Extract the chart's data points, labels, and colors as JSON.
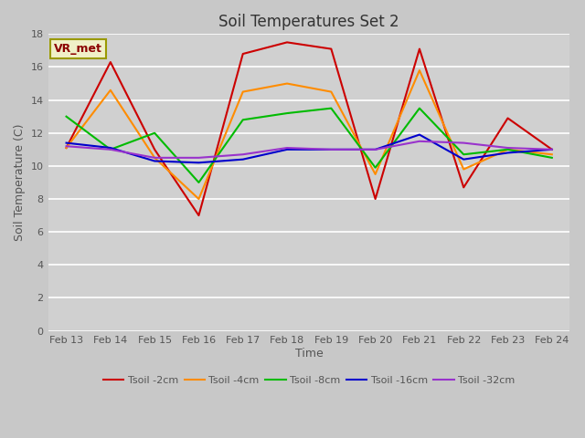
{
  "title": "Soil Temperatures Set 2",
  "xlabel": "Time",
  "ylabel": "Soil Temperature (C)",
  "annotation": "VR_met",
  "ylim": [
    0,
    18
  ],
  "yticks": [
    0,
    2,
    4,
    6,
    8,
    10,
    12,
    14,
    16,
    18
  ],
  "x_labels": [
    "Feb 13",
    "Feb 14",
    "Feb 15",
    "Feb 16",
    "Feb 17",
    "Feb 18",
    "Feb 19",
    "Feb 20",
    "Feb 21",
    "Feb 22",
    "Feb 23",
    "Feb 24"
  ],
  "n_points": 12,
  "series": {
    "Tsoil -2cm": {
      "color": "#cc0000",
      "data": [
        11.1,
        16.3,
        11.0,
        7.0,
        16.8,
        17.5,
        17.1,
        8.0,
        17.1,
        8.7,
        12.9,
        11.0
      ]
    },
    "Tsoil -4cm": {
      "color": "#ff8c00",
      "data": [
        11.1,
        14.6,
        10.5,
        8.0,
        14.5,
        15.0,
        14.5,
        9.5,
        15.8,
        9.8,
        11.0,
        10.7
      ]
    },
    "Tsoil -8cm": {
      "color": "#00bb00",
      "data": [
        13.0,
        11.0,
        12.0,
        9.0,
        12.8,
        13.2,
        13.5,
        9.9,
        13.5,
        10.7,
        11.0,
        10.5
      ]
    },
    "Tsoil -16cm": {
      "color": "#0000cc",
      "data": [
        11.4,
        11.1,
        10.3,
        10.2,
        10.4,
        11.0,
        11.0,
        11.0,
        11.9,
        10.4,
        10.8,
        11.0
      ]
    },
    "Tsoil -32cm": {
      "color": "#9933cc",
      "data": [
        11.2,
        11.0,
        10.5,
        10.5,
        10.7,
        11.1,
        11.0,
        11.0,
        11.5,
        11.4,
        11.1,
        11.0
      ]
    }
  },
  "fig_facecolor": "#c8c8c8",
  "axes_facecolor": "#d0d0d0",
  "grid_color": "#ffffff",
  "title_color": "#333333",
  "tick_color": "#555555",
  "spine_color": "#aaaaaa",
  "title_fontsize": 12,
  "label_fontsize": 9,
  "tick_fontsize": 8,
  "legend_fontsize": 8,
  "linewidth": 1.5
}
